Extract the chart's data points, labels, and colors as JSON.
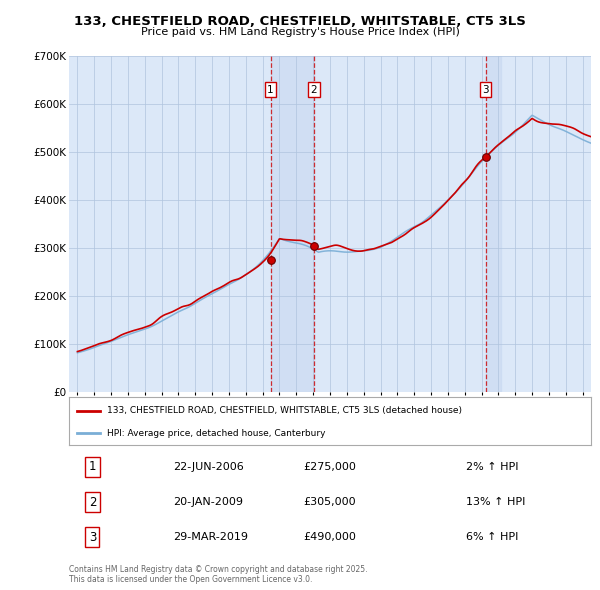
{
  "title": "133, CHESTFIELD ROAD, CHESTFIELD, WHITSTABLE, CT5 3LS",
  "subtitle": "Price paid vs. HM Land Registry's House Price Index (HPI)",
  "legend_label_red": "133, CHESTFIELD ROAD, CHESTFIELD, WHITSTABLE, CT5 3LS (detached house)",
  "legend_label_blue": "HPI: Average price, detached house, Canterbury",
  "footer": "Contains HM Land Registry data © Crown copyright and database right 2025.\nThis data is licensed under the Open Government Licence v3.0.",
  "red_color": "#cc0000",
  "blue_color": "#7aaed6",
  "background_color": "#dce8f8",
  "grid_color": "#b0c4de",
  "transactions": [
    {
      "num": 1,
      "date": "22-JUN-2006",
      "price": 275000,
      "pct": "2%",
      "direction": "↑",
      "x": 2006.47
    },
    {
      "num": 2,
      "date": "20-JAN-2009",
      "price": 305000,
      "pct": "13%",
      "direction": "↑",
      "x": 2009.05
    },
    {
      "num": 3,
      "date": "29-MAR-2019",
      "price": 490000,
      "pct": "6%",
      "direction": "↑",
      "x": 2019.24
    }
  ],
  "ylim": [
    0,
    700000
  ],
  "yticks": [
    0,
    100000,
    200000,
    300000,
    400000,
    500000,
    600000,
    700000
  ],
  "ytick_labels": [
    "£0",
    "£100K",
    "£200K",
    "£300K",
    "£400K",
    "£500K",
    "£600K",
    "£700K"
  ],
  "xlim": [
    1994.5,
    2025.5
  ],
  "xticks": [
    1995,
    1996,
    1997,
    1998,
    1999,
    2000,
    2001,
    2002,
    2003,
    2004,
    2005,
    2006,
    2007,
    2008,
    2009,
    2010,
    2011,
    2012,
    2013,
    2014,
    2015,
    2016,
    2017,
    2018,
    2019,
    2020,
    2021,
    2022,
    2023,
    2024,
    2025
  ]
}
